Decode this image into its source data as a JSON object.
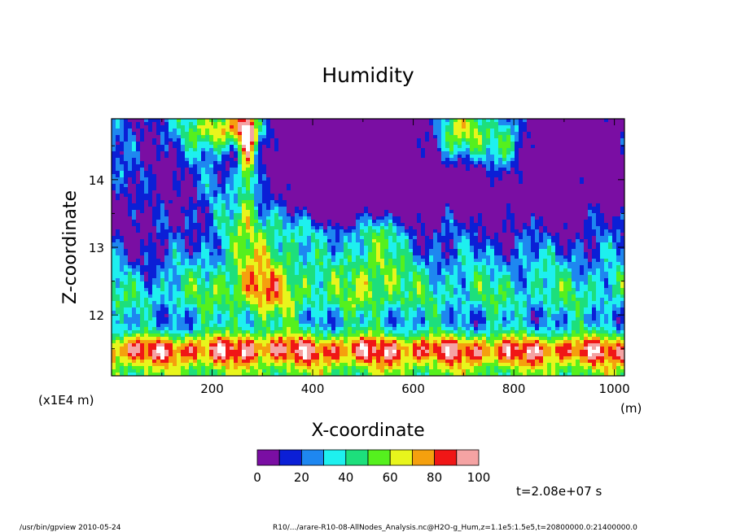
{
  "chart_data": {
    "type": "heatmap",
    "title": "Humidity",
    "xlabel": "X-coordinate",
    "ylabel": "Z-coordinate",
    "x_unit_label": "(m)",
    "y_unit_label": "(x1E4 m)",
    "xlim": [
      0,
      1020
    ],
    "ylim": [
      11.1,
      14.9
    ],
    "x_ticks": [
      200,
      400,
      600,
      800,
      1000
    ],
    "x_tick_labels": [
      "200",
      "400",
      "600",
      "800",
      "1000"
    ],
    "y_ticks": [
      12,
      13,
      14
    ],
    "y_tick_labels": [
      "12",
      "13",
      "14"
    ],
    "colorbar": {
      "levels": [
        0,
        10,
        20,
        30,
        40,
        50,
        60,
        70,
        80,
        90,
        100
      ],
      "tick_labels": [
        "0",
        "20",
        "40",
        "60",
        "80",
        "100"
      ],
      "colors": [
        "#7a0ea3",
        "#0b1fd6",
        "#1e87f0",
        "#1ef0ef",
        "#1ddf7c",
        "#55f01e",
        "#e8f51c",
        "#f5a00e",
        "#f01616",
        "#f5a3a3"
      ]
    },
    "annotation": "t=2.08e+07 s",
    "grid": false,
    "legend": "colorbar-bottom"
  },
  "footer": {
    "left": "/usr/bin/gpview   2010-05-24",
    "right": "R10/.../arare-R10-08-AllNodes_Analysis.nc@H2O-g_Hum,z=1.1e5:1.5e5,t=20800000.0:21400000.0"
  }
}
